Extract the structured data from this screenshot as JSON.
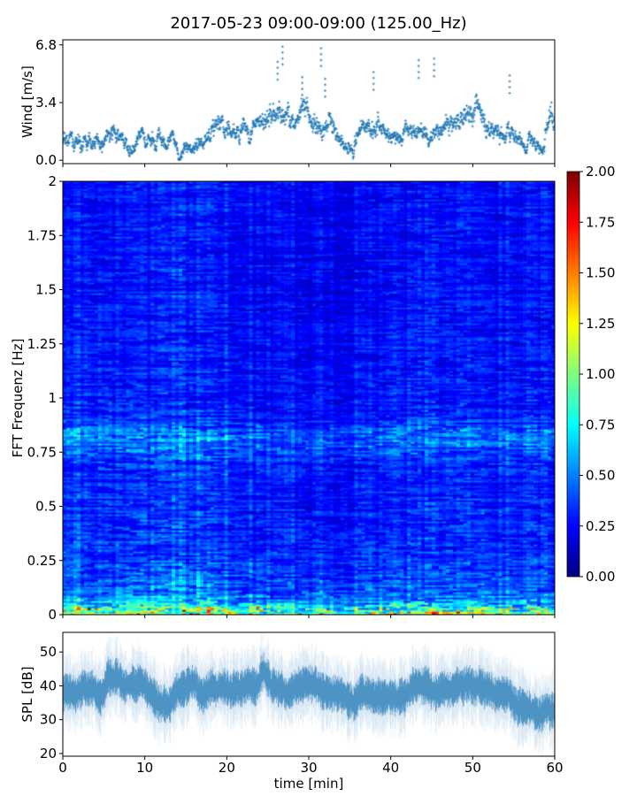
{
  "chart_data": [
    {
      "type": "scatter",
      "title": "2017-05-23 09:00-09:00 (125.00_Hz)",
      "xlabel": "",
      "ylabel": "Wind [m/s]",
      "xlim": [
        0,
        60
      ],
      "ylim": [
        -0.2,
        7.1
      ],
      "yticks": [
        "0.0",
        "3.4",
        "6.8"
      ],
      "yticks_values": [
        0,
        3.4,
        6.8
      ],
      "marker": "+",
      "color": "#1f77b4",
      "minute_mean_wind": [
        1.1,
        1.0,
        0.8,
        0.9,
        1.3,
        1.5,
        1.4,
        1.0,
        0.8,
        1.0,
        0.9,
        1.2,
        1.4,
        1.1,
        0.7,
        0.6,
        1.1,
        1.5,
        1.8,
        1.7,
        1.5,
        1.6,
        2.0,
        1.9,
        2.1,
        2.6,
        2.8,
        2.5,
        2.4,
        2.6,
        2.2,
        1.8,
        2.4,
        1.6,
        1.2,
        1.0,
        1.8,
        2.0,
        2.2,
        1.6,
        1.4,
        1.3,
        1.6,
        1.8,
        1.5,
        1.9,
        2.2,
        2.3,
        2.2,
        2.5,
        3.0,
        1.9,
        1.7,
        1.6,
        1.5,
        1.4,
        1.0,
        0.8,
        0.9,
        2.5
      ],
      "peaks": [
        [
          26.8,
          6.7
        ],
        [
          31.5,
          6.6
        ],
        [
          26.2,
          5.8
        ],
        [
          43.4,
          5.9
        ],
        [
          45.3,
          6.0
        ],
        [
          37.9,
          5.2
        ],
        [
          54.5,
          5.0
        ],
        [
          32.0,
          4.8
        ],
        [
          29.2,
          4.9
        ]
      ]
    },
    {
      "type": "heatmap",
      "xlabel": "",
      "ylabel": "FFT Frequenz [Hz]",
      "xlim": [
        0,
        60
      ],
      "ylim": [
        0,
        2
      ],
      "yticks": [
        "0",
        "0.25",
        "0.5",
        "0.75",
        "1",
        "1.25",
        "1.5",
        "1.75",
        "2"
      ],
      "yticks_values": [
        0,
        0.25,
        0.5,
        0.75,
        1,
        1.25,
        1.5,
        1.75,
        2
      ],
      "colormap": "jet",
      "colorbar": {
        "range": [
          0,
          2
        ],
        "ticks": [
          "0.00",
          "0.25",
          "0.50",
          "0.75",
          "1.00",
          "1.25",
          "1.50",
          "1.75",
          "2.00"
        ],
        "ticks_values": [
          0,
          0.25,
          0.5,
          0.75,
          1,
          1.25,
          1.5,
          1.75,
          2
        ]
      },
      "freq_profile_hz": [
        0,
        0.02,
        0.05,
        0.1,
        0.2,
        0.3,
        0.4,
        0.5,
        0.6,
        0.7,
        0.8,
        0.85,
        0.9,
        1.0,
        1.2,
        1.4,
        1.6,
        1.8,
        2.0
      ],
      "freq_profile_level": [
        1.3,
        1.0,
        0.7,
        0.5,
        0.42,
        0.38,
        0.36,
        0.36,
        0.34,
        0.36,
        0.55,
        0.5,
        0.36,
        0.33,
        0.32,
        0.3,
        0.3,
        0.3,
        0.3
      ],
      "time_modulation_min": [
        0,
        10,
        15,
        20,
        25,
        30,
        35,
        40,
        45,
        50,
        55,
        60
      ],
      "time_modulation_factor": [
        1.0,
        0.95,
        1.05,
        0.95,
        0.85,
        0.8,
        0.8,
        0.85,
        0.9,
        0.9,
        0.9,
        0.95
      ]
    },
    {
      "type": "area",
      "xlabel": "time [min]",
      "ylabel": "SPL [dB]",
      "xlim": [
        0,
        60
      ],
      "ylim": [
        19.2,
        55.8
      ],
      "xticks": [
        "0",
        "10",
        "20",
        "30",
        "40",
        "50",
        "60"
      ],
      "xticks_values": [
        0,
        10,
        20,
        30,
        40,
        50,
        60
      ],
      "yticks": [
        "20",
        "30",
        "40",
        "50"
      ],
      "yticks_values": [
        20,
        30,
        40,
        50
      ],
      "color": "#1f77b4",
      "minute_mean_spl": [
        37,
        35,
        38,
        39,
        35,
        40,
        41,
        38,
        39,
        40,
        37,
        36,
        35,
        37,
        40,
        40,
        39,
        38,
        39,
        40,
        38,
        40,
        41,
        39,
        45,
        40,
        40,
        39,
        39,
        40,
        39,
        38,
        37,
        37,
        37,
        36,
        38,
        37,
        37,
        36,
        36,
        38,
        39,
        40,
        40,
        38,
        40,
        40,
        41,
        40,
        39,
        38,
        38,
        39,
        39,
        35,
        35,
        34,
        33,
        33
      ],
      "band_halfwidth_db": 4
    }
  ]
}
